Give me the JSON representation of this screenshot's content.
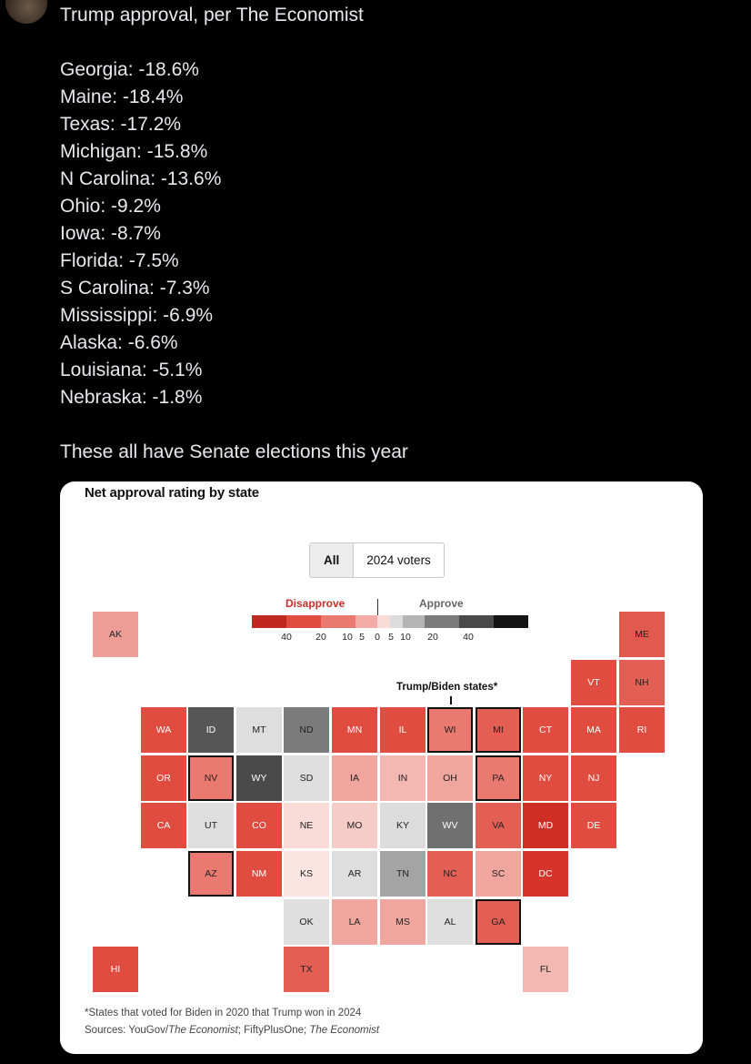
{
  "tweet": {
    "header": "Trump approval, per The Economist",
    "lines": [
      "Georgia: -18.6%",
      "Maine: -18.4%",
      "Texas: -17.2%",
      "Michigan: -15.8%",
      "N Carolina: -13.6%",
      "Ohio: -9.2%",
      "Iowa: -8.7%",
      "Florida: -7.5%",
      "S Carolina: -7.3%",
      "Mississippi: -6.9%",
      "Alaska: -6.6%",
      "Louisiana: -5.1%",
      "Nebraska: -1.8%"
    ],
    "closing": "These all have Senate elections this year"
  },
  "card": {
    "title": "Net approval rating by state",
    "toggle": {
      "options": [
        "All",
        "2024 voters"
      ],
      "selected": "All"
    },
    "legend": {
      "disapprove_label": "Disapprove",
      "approve_label": "Approve",
      "ticks": [
        "40",
        "20",
        "10",
        "5",
        "0",
        "5",
        "10",
        "20",
        "40"
      ],
      "colors": [
        "#c0291f",
        "#e04c40",
        "#ea7a70",
        "#f3aca5",
        "#f9dcd8",
        "#dcdcdc",
        "#b4b4b4",
        "#7b7b7b",
        "#4a4a4a",
        "#141414"
      ]
    },
    "annotation": "Trump/Biden states*",
    "footnote": "*States that voted for Biden in 2020 that Trump won in 2024",
    "sources": [
      "Sources: YouGov/",
      "The Economist",
      "; FiftyPlusOne; ",
      "The Economist"
    ]
  },
  "chart_data": {
    "type": "table",
    "title": "Net approval rating by state",
    "legend_scale": {
      "disapprove": [
        40,
        20,
        10,
        5,
        0
      ],
      "approve": [
        0,
        5,
        10,
        20,
        40
      ]
    },
    "states": [
      {
        "abbr": "AK",
        "row": 0,
        "col": 0,
        "color": "#ee9d96",
        "highlight": false
      },
      {
        "abbr": "ME",
        "row": 0,
        "col": 11,
        "color": "#e2594e",
        "highlight": false
      },
      {
        "abbr": "VT",
        "row": 1,
        "col": 10,
        "color": "#e04c40",
        "highlight": false
      },
      {
        "abbr": "NH",
        "row": 1,
        "col": 11,
        "color": "#e35f54",
        "highlight": false
      },
      {
        "abbr": "WA",
        "row": 2,
        "col": 1,
        "color": "#e04c40",
        "highlight": false
      },
      {
        "abbr": "ID",
        "row": 2,
        "col": 2,
        "color": "#565656",
        "highlight": false
      },
      {
        "abbr": "MT",
        "row": 2,
        "col": 3,
        "color": "#dedede",
        "highlight": false
      },
      {
        "abbr": "ND",
        "row": 2,
        "col": 4,
        "color": "#7b7b7b",
        "highlight": false
      },
      {
        "abbr": "MN",
        "row": 2,
        "col": 5,
        "color": "#e04c40",
        "highlight": false
      },
      {
        "abbr": "IL",
        "row": 2,
        "col": 6,
        "color": "#e04c40",
        "highlight": false
      },
      {
        "abbr": "WI",
        "row": 2,
        "col": 7,
        "color": "#ea7a70",
        "highlight": true
      },
      {
        "abbr": "MI",
        "row": 2,
        "col": 8,
        "color": "#e35f54",
        "highlight": true
      },
      {
        "abbr": "CT",
        "row": 2,
        "col": 9,
        "color": "#e04c40",
        "highlight": false
      },
      {
        "abbr": "MA",
        "row": 2,
        "col": 10,
        "color": "#e04c40",
        "highlight": false
      },
      {
        "abbr": "RI",
        "row": 2,
        "col": 11,
        "color": "#e04c40",
        "highlight": false
      },
      {
        "abbr": "OR",
        "row": 3,
        "col": 1,
        "color": "#e04c40",
        "highlight": false
      },
      {
        "abbr": "NV",
        "row": 3,
        "col": 2,
        "color": "#ea7a70",
        "highlight": true
      },
      {
        "abbr": "WY",
        "row": 3,
        "col": 3,
        "color": "#4a4a4a",
        "highlight": false
      },
      {
        "abbr": "SD",
        "row": 3,
        "col": 4,
        "color": "#dedede",
        "highlight": false
      },
      {
        "abbr": "IA",
        "row": 3,
        "col": 5,
        "color": "#f0a59e",
        "highlight": false
      },
      {
        "abbr": "IN",
        "row": 3,
        "col": 6,
        "color": "#f3b8b2",
        "highlight": false
      },
      {
        "abbr": "OH",
        "row": 3,
        "col": 7,
        "color": "#f0a59e",
        "highlight": false
      },
      {
        "abbr": "PA",
        "row": 3,
        "col": 8,
        "color": "#ea7a70",
        "highlight": true
      },
      {
        "abbr": "NY",
        "row": 3,
        "col": 9,
        "color": "#e04c40",
        "highlight": false
      },
      {
        "abbr": "NJ",
        "row": 3,
        "col": 10,
        "color": "#e04c40",
        "highlight": false
      },
      {
        "abbr": "CA",
        "row": 4,
        "col": 1,
        "color": "#e04c40",
        "highlight": false
      },
      {
        "abbr": "UT",
        "row": 4,
        "col": 2,
        "color": "#dedede",
        "highlight": false
      },
      {
        "abbr": "CO",
        "row": 4,
        "col": 3,
        "color": "#e04c40",
        "highlight": false
      },
      {
        "abbr": "NE",
        "row": 4,
        "col": 4,
        "color": "#f9dcd8",
        "highlight": false
      },
      {
        "abbr": "MO",
        "row": 4,
        "col": 5,
        "color": "#f6ccc7",
        "highlight": false
      },
      {
        "abbr": "KY",
        "row": 4,
        "col": 6,
        "color": "#dcdcdc",
        "highlight": false
      },
      {
        "abbr": "WV",
        "row": 4,
        "col": 7,
        "color": "#707070",
        "highlight": false
      },
      {
        "abbr": "VA",
        "row": 4,
        "col": 8,
        "color": "#e35f54",
        "highlight": false
      },
      {
        "abbr": "MD",
        "row": 4,
        "col": 9,
        "color": "#cf2e24",
        "highlight": false
      },
      {
        "abbr": "DE",
        "row": 4,
        "col": 10,
        "color": "#e04c40",
        "highlight": false
      },
      {
        "abbr": "AZ",
        "row": 5,
        "col": 2,
        "color": "#ea7a70",
        "highlight": true
      },
      {
        "abbr": "NM",
        "row": 5,
        "col": 3,
        "color": "#e04c40",
        "highlight": false
      },
      {
        "abbr": "KS",
        "row": 5,
        "col": 4,
        "color": "#f9e4e1",
        "highlight": false
      },
      {
        "abbr": "AR",
        "row": 5,
        "col": 5,
        "color": "#dedede",
        "highlight": false
      },
      {
        "abbr": "TN",
        "row": 5,
        "col": 6,
        "color": "#a4a4a4",
        "highlight": false
      },
      {
        "abbr": "NC",
        "row": 5,
        "col": 7,
        "color": "#e35f54",
        "highlight": false
      },
      {
        "abbr": "SC",
        "row": 5,
        "col": 8,
        "color": "#f0a59e",
        "highlight": false
      },
      {
        "abbr": "DC",
        "row": 5,
        "col": 9,
        "color": "#d6342a",
        "highlight": false
      },
      {
        "abbr": "OK",
        "row": 6,
        "col": 4,
        "color": "#dedede",
        "highlight": false
      },
      {
        "abbr": "LA",
        "row": 6,
        "col": 5,
        "color": "#f0a59e",
        "highlight": false
      },
      {
        "abbr": "MS",
        "row": 6,
        "col": 6,
        "color": "#f0a59e",
        "highlight": false
      },
      {
        "abbr": "AL",
        "row": 6,
        "col": 7,
        "color": "#dedede",
        "highlight": false
      },
      {
        "abbr": "GA",
        "row": 6,
        "col": 8,
        "color": "#e35f54",
        "highlight": true
      },
      {
        "abbr": "HI",
        "row": 7,
        "col": 0,
        "color": "#e04c40",
        "highlight": false
      },
      {
        "abbr": "TX",
        "row": 7,
        "col": 4,
        "color": "#e35f54",
        "highlight": false
      },
      {
        "abbr": "FL",
        "row": 7,
        "col": 9,
        "color": "#f3b8b2",
        "highlight": false
      }
    ]
  }
}
